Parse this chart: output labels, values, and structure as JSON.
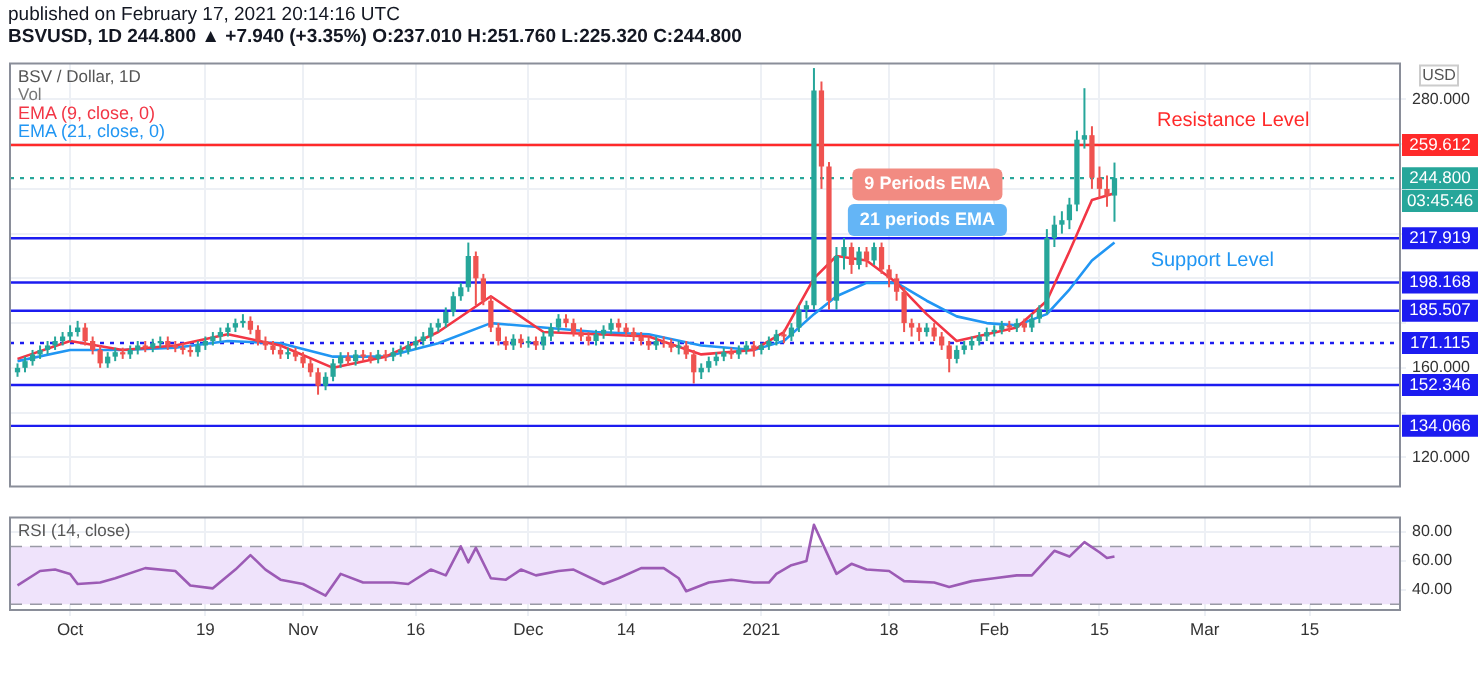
{
  "chart_data": [
    {
      "type": "candlestick",
      "title": "published on February 17, 2021 20:14:16 UTC",
      "subtitle": "BSVUSD, 1D 244.800 ▲ +7.940 (+3.35%) O:237.010 H:251.760 L:225.320 C:244.800",
      "legend_title": "BSV / Dollar, 1D",
      "ylabel": "USD",
      "legend": "top left",
      "grid": true,
      "tick_labels": "y",
      "x": [
        "2020-09-24",
        "2020-09-25",
        "2020-09-26",
        "2020-09-27",
        "2020-09-28",
        "2020-09-29",
        "2020-09-30",
        "2020-10-01",
        "2020-10-02",
        "2020-10-03",
        "2020-10-04",
        "2020-10-05",
        "2020-10-06",
        "2020-10-07",
        "2020-10-08",
        "2020-10-09",
        "2020-10-10",
        "2020-10-11",
        "2020-10-12",
        "2020-10-13",
        "2020-10-14",
        "2020-10-15",
        "2020-10-16",
        "2020-10-17",
        "2020-10-18",
        "2020-10-19",
        "2020-10-20",
        "2020-10-21",
        "2020-10-22",
        "2020-10-23",
        "2020-10-24",
        "2020-10-25",
        "2020-10-26",
        "2020-10-27",
        "2020-10-28",
        "2020-10-29",
        "2020-10-30",
        "2020-10-31",
        "2020-11-01",
        "2020-11-02",
        "2020-11-03",
        "2020-11-04",
        "2020-11-05",
        "2020-11-06",
        "2020-11-07",
        "2020-11-08",
        "2020-11-09",
        "2020-11-10",
        "2020-11-11",
        "2020-11-12",
        "2020-11-13",
        "2020-11-14",
        "2020-11-15",
        "2020-11-16",
        "2020-11-17",
        "2020-11-18",
        "2020-11-19",
        "2020-11-20",
        "2020-11-21",
        "2020-11-22",
        "2020-11-23",
        "2020-11-24",
        "2020-11-25",
        "2020-11-26",
        "2020-11-27",
        "2020-11-28",
        "2020-11-29",
        "2020-11-30",
        "2020-12-01",
        "2020-12-02",
        "2020-12-03",
        "2020-12-04",
        "2020-12-05",
        "2020-12-06",
        "2020-12-07",
        "2020-12-08",
        "2020-12-09",
        "2020-12-10",
        "2020-12-11",
        "2020-12-12",
        "2020-12-13",
        "2020-12-14",
        "2020-12-15",
        "2020-12-16",
        "2020-12-17",
        "2020-12-18",
        "2020-12-19",
        "2020-12-20",
        "2020-12-21",
        "2020-12-22",
        "2020-12-23",
        "2020-12-24",
        "2020-12-25",
        "2020-12-26",
        "2020-12-27",
        "2020-12-28",
        "2020-12-29",
        "2020-12-30",
        "2020-12-31",
        "2021-01-01",
        "2021-01-02",
        "2021-01-03",
        "2021-01-04",
        "2021-01-05",
        "2021-01-06",
        "2021-01-07",
        "2021-01-08",
        "2021-01-09",
        "2021-01-10",
        "2021-01-11",
        "2021-01-12",
        "2021-01-13",
        "2021-01-14",
        "2021-01-15",
        "2021-01-16",
        "2021-01-17",
        "2021-01-18",
        "2021-01-19",
        "2021-01-20",
        "2021-01-21",
        "2021-01-22",
        "2021-01-23",
        "2021-01-24",
        "2021-01-25",
        "2021-01-26",
        "2021-01-27",
        "2021-01-28",
        "2021-01-29",
        "2021-01-30",
        "2021-01-31",
        "2021-02-01",
        "2021-02-02",
        "2021-02-03",
        "2021-02-04",
        "2021-02-05",
        "2021-02-06",
        "2021-02-07",
        "2021-02-08",
        "2021-02-09",
        "2021-02-10",
        "2021-02-11",
        "2021-02-12",
        "2021-02-13",
        "2021-02-14",
        "2021-02-15",
        "2021-02-16",
        "2021-02-17"
      ],
      "ohlc": [
        [
          158,
          162,
          156,
          160
        ],
        [
          160,
          165,
          158,
          163
        ],
        [
          163,
          168,
          161,
          166
        ],
        [
          166,
          170,
          164,
          168
        ],
        [
          168,
          172,
          166,
          170
        ],
        [
          170,
          174,
          168,
          172
        ],
        [
          172,
          176,
          170,
          174
        ],
        [
          174,
          179,
          172,
          176
        ],
        [
          176,
          181,
          174,
          178
        ],
        [
          178,
          180,
          170,
          172
        ],
        [
          172,
          174,
          166,
          168
        ],
        [
          168,
          170,
          160,
          162
        ],
        [
          162,
          167,
          160,
          165
        ],
        [
          165,
          169,
          163,
          167
        ],
        [
          167,
          169,
          164,
          166
        ],
        [
          166,
          170,
          164,
          168
        ],
        [
          168,
          172,
          166,
          170
        ],
        [
          170,
          172,
          167,
          169
        ],
        [
          169,
          173,
          167,
          171
        ],
        [
          171,
          174,
          169,
          172
        ],
        [
          172,
          174,
          168,
          170
        ],
        [
          170,
          172,
          167,
          169
        ],
        [
          169,
          171,
          166,
          168
        ],
        [
          168,
          170,
          165,
          167
        ],
        [
          167,
          172,
          165,
          170
        ],
        [
          170,
          174,
          168,
          172
        ],
        [
          172,
          176,
          170,
          174
        ],
        [
          174,
          178,
          172,
          176
        ],
        [
          176,
          180,
          174,
          178
        ],
        [
          178,
          182,
          176,
          180
        ],
        [
          180,
          184,
          178,
          181
        ],
        [
          181,
          183,
          175,
          177
        ],
        [
          177,
          179,
          170,
          172
        ],
        [
          172,
          174,
          168,
          170
        ],
        [
          170,
          172,
          166,
          168
        ],
        [
          168,
          170,
          164,
          166
        ],
        [
          166,
          169,
          164,
          167
        ],
        [
          167,
          169,
          163,
          165
        ],
        [
          165,
          167,
          160,
          162
        ],
        [
          162,
          164,
          156,
          158
        ],
        [
          158,
          160,
          148,
          152
        ],
        [
          152,
          158,
          150,
          156
        ],
        [
          156,
          164,
          154,
          162
        ],
        [
          162,
          167,
          160,
          165
        ],
        [
          165,
          167,
          161,
          163
        ],
        [
          163,
          168,
          161,
          166
        ],
        [
          166,
          168,
          163,
          165
        ],
        [
          165,
          167,
          162,
          164
        ],
        [
          164,
          168,
          162,
          166
        ],
        [
          166,
          168,
          163,
          165
        ],
        [
          165,
          169,
          163,
          167
        ],
        [
          167,
          170,
          165,
          168
        ],
        [
          168,
          172,
          166,
          170
        ],
        [
          170,
          174,
          168,
          172
        ],
        [
          172,
          176,
          170,
          174
        ],
        [
          174,
          180,
          172,
          178
        ],
        [
          178,
          182,
          176,
          180
        ],
        [
          180,
          187,
          178,
          185
        ],
        [
          185,
          194,
          183,
          192
        ],
        [
          192,
          198,
          190,
          196
        ],
        [
          196,
          216,
          194,
          210
        ],
        [
          210,
          212,
          188,
          200
        ],
        [
          200,
          202,
          188,
          190
        ],
        [
          190,
          192,
          176,
          178
        ],
        [
          178,
          180,
          170,
          172
        ],
        [
          172,
          174,
          168,
          170
        ],
        [
          170,
          175,
          168,
          173
        ],
        [
          173,
          175,
          169,
          171
        ],
        [
          171,
          174,
          169,
          172
        ],
        [
          172,
          174,
          168,
          170
        ],
        [
          170,
          176,
          168,
          174
        ],
        [
          174,
          180,
          172,
          178
        ],
        [
          178,
          184,
          176,
          182
        ],
        [
          182,
          184,
          178,
          180
        ],
        [
          180,
          182,
          174,
          176
        ],
        [
          176,
          178,
          172,
          174
        ],
        [
          174,
          176,
          170,
          172
        ],
        [
          172,
          177,
          170,
          175
        ],
        [
          175,
          179,
          173,
          177
        ],
        [
          177,
          182,
          175,
          180
        ],
        [
          180,
          182,
          176,
          178
        ],
        [
          178,
          180,
          174,
          176
        ],
        [
          176,
          178,
          172,
          174
        ],
        [
          174,
          176,
          170,
          172
        ],
        [
          172,
          174,
          168,
          170
        ],
        [
          170,
          174,
          168,
          172
        ],
        [
          172,
          174,
          169,
          171
        ],
        [
          171,
          173,
          167,
          169
        ],
        [
          169,
          172,
          166,
          170
        ],
        [
          170,
          172,
          164,
          166
        ],
        [
          166,
          168,
          153,
          158
        ],
        [
          158,
          162,
          155,
          160
        ],
        [
          160,
          165,
          158,
          163
        ],
        [
          163,
          167,
          161,
          165
        ],
        [
          165,
          169,
          163,
          167
        ],
        [
          167,
          169,
          164,
          166
        ],
        [
          166,
          170,
          164,
          168
        ],
        [
          168,
          172,
          166,
          170
        ],
        [
          170,
          172,
          165,
          168
        ],
        [
          168,
          171,
          166,
          170
        ],
        [
          170,
          174,
          168,
          172
        ],
        [
          172,
          177,
          170,
          175
        ],
        [
          175,
          177,
          171,
          174
        ],
        [
          174,
          180,
          172,
          178
        ],
        [
          178,
          188,
          176,
          186
        ],
        [
          186,
          190,
          182,
          188
        ],
        [
          188,
          294,
          186,
          284
        ],
        [
          284,
          288,
          240,
          250
        ],
        [
          250,
          252,
          186,
          190
        ],
        [
          190,
          214,
          186,
          210
        ],
        [
          210,
          218,
          204,
          214
        ],
        [
          214,
          216,
          202,
          206
        ],
        [
          206,
          214,
          204,
          212
        ],
        [
          212,
          214,
          205,
          208
        ],
        [
          208,
          216,
          206,
          214
        ],
        [
          214,
          216,
          202,
          204
        ],
        [
          204,
          206,
          196,
          200
        ],
        [
          200,
          202,
          190,
          194
        ],
        [
          194,
          196,
          176,
          180
        ],
        [
          180,
          182,
          174,
          178
        ],
        [
          178,
          180,
          172,
          176
        ],
        [
          176,
          180,
          174,
          178
        ],
        [
          178,
          180,
          172,
          174
        ],
        [
          174,
          176,
          168,
          170
        ],
        [
          170,
          172,
          158,
          164
        ],
        [
          164,
          170,
          162,
          168
        ],
        [
          168,
          172,
          166,
          170
        ],
        [
          170,
          174,
          168,
          172
        ],
        [
          172,
          176,
          170,
          174
        ],
        [
          174,
          178,
          172,
          176
        ],
        [
          176,
          179,
          174,
          177
        ],
        [
          177,
          181,
          175,
          179
        ],
        [
          179,
          181,
          176,
          178
        ],
        [
          178,
          182,
          176,
          180
        ],
        [
          180,
          182,
          176,
          178
        ],
        [
          178,
          184,
          176,
          182
        ],
        [
          182,
          188,
          180,
          186
        ],
        [
          186,
          222,
          184,
          218
        ],
        [
          218,
          228,
          214,
          224
        ],
        [
          224,
          230,
          220,
          226
        ],
        [
          226,
          236,
          222,
          233
        ],
        [
          233,
          266,
          230,
          262
        ],
        [
          262,
          285,
          258,
          264
        ],
        [
          264,
          268,
          240,
          245
        ],
        [
          245,
          250,
          236,
          240
        ],
        [
          240,
          246,
          232,
          236.86
        ],
        [
          237.01,
          251.76,
          225.32,
          244.8
        ]
      ],
      "series": [
        {
          "name": "EMA (9, close, 0)",
          "type": "line",
          "color": "#f23645",
          "x": [
            "2020-09-24",
            "2020-10-01",
            "2020-10-08",
            "2020-10-15",
            "2020-10-22",
            "2020-10-29",
            "2020-11-05",
            "2020-11-12",
            "2020-11-19",
            "2020-11-26",
            "2020-12-03",
            "2020-12-10",
            "2020-12-17",
            "2020-12-24",
            "2020-12-31",
            "2021-01-04",
            "2021-01-08",
            "2021-01-11",
            "2021-01-15",
            "2021-01-19",
            "2021-01-23",
            "2021-01-27",
            "2021-01-31",
            "2021-02-04",
            "2021-02-08",
            "2021-02-11",
            "2021-02-14",
            "2021-02-17"
          ],
          "values": [
            164,
            172,
            168,
            170,
            175,
            170,
            160,
            165,
            176,
            192,
            176,
            175,
            174,
            166,
            168,
            176,
            200,
            210,
            208,
            198,
            184,
            172,
            175,
            178,
            190,
            212,
            235,
            238
          ]
        },
        {
          "name": "EMA (21, close, 0)",
          "type": "line",
          "color": "#2196f3",
          "x": [
            "2020-09-24",
            "2020-10-01",
            "2020-10-08",
            "2020-10-15",
            "2020-10-22",
            "2020-10-29",
            "2020-11-05",
            "2020-11-12",
            "2020-11-19",
            "2020-11-26",
            "2020-12-03",
            "2020-12-10",
            "2020-12-17",
            "2020-12-24",
            "2020-12-31",
            "2021-01-04",
            "2021-01-08",
            "2021-01-11",
            "2021-01-15",
            "2021-01-19",
            "2021-01-23",
            "2021-01-27",
            "2021-01-31",
            "2021-02-04",
            "2021-02-08",
            "2021-02-11",
            "2021-02-14",
            "2021-02-17"
          ],
          "values": [
            163,
            168,
            168,
            169,
            172,
            171,
            165,
            165,
            171,
            180,
            178,
            176,
            175,
            170,
            168,
            172,
            184,
            192,
            198,
            198,
            190,
            183,
            180,
            179,
            184,
            195,
            208,
            216
          ]
        }
      ],
      "xlim": [
        "2020-09-23",
        "2021-03-27"
      ],
      "xticks": [
        {
          "value": "2020-10-01",
          "label": null
        },
        {
          "value": "2020-10-19",
          "label": null
        },
        {
          "value": "2020-11-01",
          "label": null
        },
        {
          "value": "2020-11-16",
          "label": null
        },
        {
          "value": "2020-12-01",
          "label": null
        },
        {
          "value": "2020-12-14",
          "label": null
        },
        {
          "value": "2021-01-01",
          "label": null
        },
        {
          "value": "2021-01-18",
          "label": null
        },
        {
          "value": "2021-02-01",
          "label": null
        },
        {
          "value": "2021-02-15",
          "label": null
        },
        {
          "value": "2021-03-01",
          "label": null
        },
        {
          "value": "2021-03-15",
          "label": null
        }
      ],
      "ylim": [
        107,
        296
      ],
      "yticks": [
        {
          "value": 120,
          "label": "120.000"
        },
        {
          "value": 140,
          "label": null
        },
        {
          "value": 160,
          "label": "160.000"
        },
        {
          "value": 180,
          "label": null
        },
        {
          "value": 200,
          "label": null
        },
        {
          "value": 220,
          "label": null
        },
        {
          "value": 240,
          "label": null
        },
        {
          "value": 260,
          "label": null
        },
        {
          "value": 280,
          "label": "280.000"
        }
      ],
      "ref_lines": [
        {
          "axis": "y",
          "value": 259.612,
          "label": "259.612",
          "color": "#ff2a2a"
        },
        {
          "axis": "y",
          "value": 244.8,
          "label": "244.800",
          "color": "#26a69a",
          "line_style": "dotted"
        },
        {
          "axis": "y",
          "value": 217.919,
          "label": "217.919",
          "color": "#1c1cf0"
        },
        {
          "axis": "y",
          "value": 198.168,
          "label": "198.168",
          "color": "#1c1cf0"
        },
        {
          "axis": "y",
          "value": 185.507,
          "label": "185.507",
          "color": "#1c1cf0"
        },
        {
          "axis": "y",
          "value": 171.115,
          "label": "171.115",
          "color": "#1c1cf0",
          "line_style": "dotted"
        },
        {
          "axis": "y",
          "value": 152.346,
          "label": "152.346",
          "color": "#1c1cf0"
        },
        {
          "axis": "y",
          "value": 134.066,
          "label": "134.066",
          "color": "#1c1cf0"
        }
      ],
      "annotations": [
        "Vol",
        "03:45:46",
        "Resistance Level",
        "Support Level",
        "9 Periods EMA",
        "21 periods EMA"
      ]
    },
    {
      "type": "line",
      "title": "RSI (14, close)",
      "color": "#9c5bb5",
      "grid": true,
      "x": [
        "2020-09-24",
        "2020-09-27",
        "2020-09-29",
        "2020-10-01",
        "2020-10-02",
        "2020-10-05",
        "2020-10-07",
        "2020-10-11",
        "2020-10-15",
        "2020-10-17",
        "2020-10-20",
        "2020-10-23",
        "2020-10-25",
        "2020-10-27",
        "2020-10-29",
        "2020-11-01",
        "2020-11-04",
        "2020-11-06",
        "2020-11-09",
        "2020-11-13",
        "2020-11-15",
        "2020-11-18",
        "2020-11-20",
        "2020-11-22",
        "2020-11-23",
        "2020-11-24",
        "2020-11-26",
        "2020-11-28",
        "2020-11-30",
        "2020-12-02",
        "2020-12-05",
        "2020-12-07",
        "2020-12-11",
        "2020-12-13",
        "2020-12-16",
        "2020-12-19",
        "2020-12-21",
        "2020-12-22",
        "2020-12-25",
        "2020-12-28",
        "2020-12-31",
        "2021-01-02",
        "2021-01-03",
        "2021-01-05",
        "2021-01-07",
        "2021-01-08",
        "2021-01-11",
        "2021-01-13",
        "2021-01-15",
        "2021-01-18",
        "2021-01-20",
        "2021-01-24",
        "2021-01-26",
        "2021-01-29",
        "2021-02-01",
        "2021-02-04",
        "2021-02-06",
        "2021-02-09",
        "2021-02-11",
        "2021-02-13",
        "2021-02-15",
        "2021-02-16",
        "2021-02-17"
      ],
      "values": [
        43,
        53,
        54,
        51,
        44,
        45,
        48,
        55,
        53,
        43,
        41,
        54,
        64,
        54,
        47,
        44,
        36,
        51,
        45,
        45,
        44,
        54,
        50,
        70,
        59,
        69,
        48,
        47,
        54,
        50,
        53,
        54,
        44,
        48,
        55,
        55,
        48,
        39,
        45,
        47,
        45,
        45,
        51,
        57,
        60,
        85,
        51,
        58,
        54,
        53,
        46,
        45,
        42,
        46,
        48,
        50,
        50,
        67,
        63,
        73,
        66,
        62,
        63
      ],
      "xlim": [
        "2020-09-23",
        "2021-03-27"
      ],
      "xticks": [
        {
          "value": "2020-10-01",
          "label": "Oct"
        },
        {
          "value": "2020-10-19",
          "label": "19"
        },
        {
          "value": "2020-11-01",
          "label": "Nov"
        },
        {
          "value": "2020-11-16",
          "label": "16"
        },
        {
          "value": "2020-12-01",
          "label": "Dec"
        },
        {
          "value": "2020-12-14",
          "label": "14"
        },
        {
          "value": "2021-01-01",
          "label": "2021"
        },
        {
          "value": "2021-01-18",
          "label": "18"
        },
        {
          "value": "2021-02-01",
          "label": "Feb"
        },
        {
          "value": "2021-02-15",
          "label": "15"
        },
        {
          "value": "2021-03-01",
          "label": "Mar"
        },
        {
          "value": "2021-03-15",
          "label": "15"
        }
      ],
      "ylim": [
        26,
        90
      ],
      "yticks": [
        {
          "value": 40,
          "label": "40.00"
        },
        {
          "value": 60,
          "label": "60.00"
        },
        {
          "value": 80,
          "label": "80.00"
        }
      ],
      "bands": [
        {
          "axis": "y",
          "from": 30,
          "to": 70,
          "color": "#efe3fb"
        }
      ],
      "ref_lines": [
        {
          "axis": "y",
          "value": 30,
          "color": "#9a9aa6",
          "line_style": "dashed"
        },
        {
          "axis": "y",
          "value": 70,
          "color": "#9a9aa6",
          "line_style": "dashed"
        }
      ]
    }
  ]
}
